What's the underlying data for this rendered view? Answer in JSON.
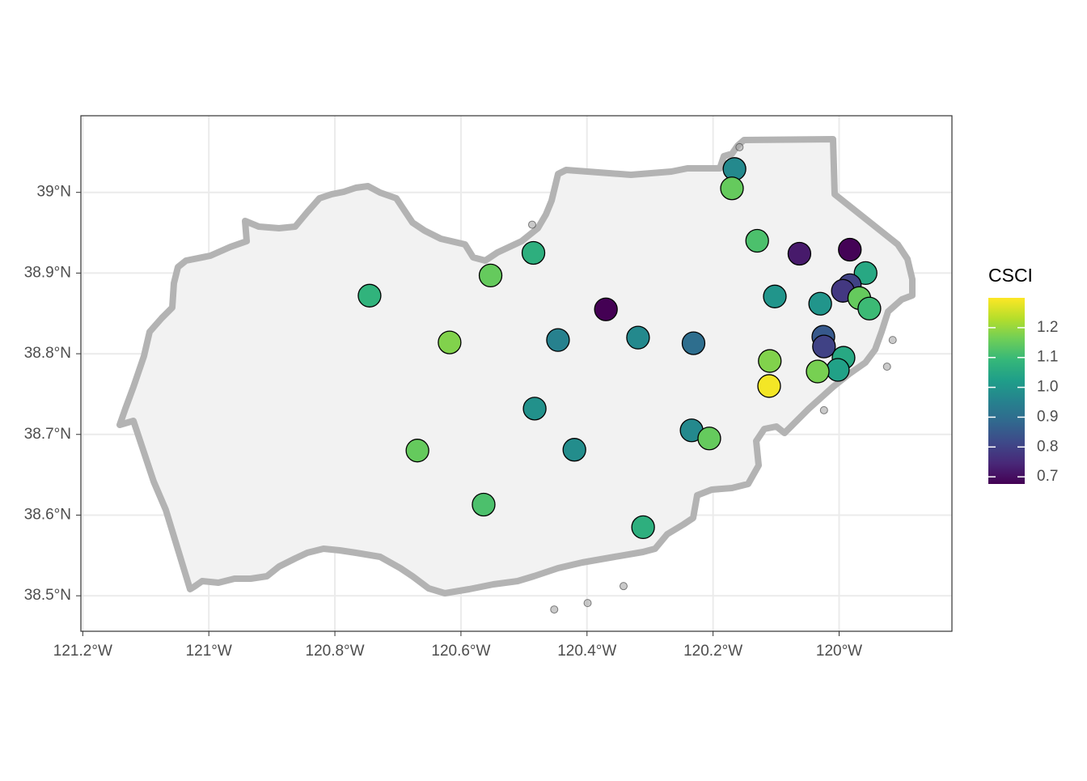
{
  "chart_data": {
    "type": "scatter",
    "xlim": [
      -121.203,
      -119.821
    ],
    "ylim": [
      38.456,
      39.095
    ],
    "xticks": [
      {
        "value": -121.2,
        "label": "121.2°W"
      },
      {
        "value": -121,
        "label": "121°W"
      },
      {
        "value": -120.8,
        "label": "120.8°W"
      },
      {
        "value": -120.6,
        "label": "120.6°W"
      },
      {
        "value": -120.4,
        "label": "120.4°W"
      },
      {
        "value": -120.2,
        "label": "120.2°W"
      },
      {
        "value": -120,
        "label": "120°W"
      }
    ],
    "yticks": [
      {
        "value": 38.5,
        "label": "38.5°N"
      },
      {
        "value": 38.6,
        "label": "38.6°N"
      },
      {
        "value": 38.7,
        "label": "38.7°N"
      },
      {
        "value": 38.8,
        "label": "38.8°N"
      },
      {
        "value": 38.9,
        "label": "38.9°N"
      },
      {
        "value": 39,
        "label": "39°N"
      }
    ],
    "grid": true,
    "sites": {
      "x": [
        -120.166,
        -120.17,
        -120.13,
        -120.063,
        -119.983,
        -119.958,
        -119.983,
        -119.994,
        -119.968,
        -119.952,
        -120.102,
        -120.03,
        -120.745,
        -120.553,
        -120.485,
        -120.37,
        -120.446,
        -120.319,
        -120.231,
        -120.618,
        -120.025,
        -120.024,
        -119.993,
        -120.002,
        -120.034,
        -120.11,
        -120.111,
        -120.483,
        -120.234,
        -120.206,
        -120.42,
        -120.669,
        -120.564,
        -120.311
      ],
      "y": [
        39.029,
        39.005,
        38.94,
        38.924,
        38.929,
        38.9,
        38.885,
        38.878,
        38.869,
        38.856,
        38.871,
        38.862,
        38.872,
        38.897,
        38.925,
        38.855,
        38.817,
        38.82,
        38.813,
        38.814,
        38.821,
        38.809,
        38.795,
        38.78,
        38.778,
        38.791,
        38.76,
        38.732,
        38.705,
        38.695,
        38.681,
        38.68,
        38.613,
        38.585
      ],
      "csci": [
        0.97,
        1.15,
        1.12,
        0.72,
        0.68,
        1.05,
        0.8,
        0.78,
        1.15,
        1.1,
        1.0,
        1.0,
        1.08,
        1.15,
        1.07,
        0.67,
        0.95,
        0.97,
        0.9,
        1.18,
        0.85,
        0.8,
        1.05,
        1.03,
        1.17,
        1.18,
        1.29,
        0.99,
        0.97,
        1.15,
        0.98,
        1.15,
        1.12,
        1.07
      ]
    },
    "other_sites": {
      "x": [
        -120.487,
        -120.158,
        -119.915,
        -119.924,
        -120.024,
        -120.342,
        -120.399,
        -120.452
      ],
      "y": [
        38.96,
        39.056,
        38.817,
        38.784,
        38.73,
        38.512,
        38.491,
        38.483
      ],
      "color": "#a6a6a6"
    },
    "colorbar": {
      "title": "CSCI",
      "lim": [
        0.676,
        1.3
      ],
      "ticks": [
        0.7,
        0.8,
        0.9,
        {
          "value": 1,
          "label": "1.0"
        },
        1.1,
        1.2
      ],
      "colors": [
        "#440154",
        "#482878",
        "#3e4989",
        "#31688e",
        "#26828e",
        "#1f9e89",
        "#35b779",
        "#6ece58",
        "#b5de2b",
        "#fde725"
      ]
    }
  }
}
